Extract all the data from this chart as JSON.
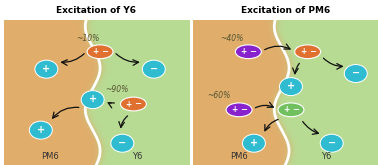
{
  "title_left": "Excitation of Y6",
  "title_right": "Excitation of PM6",
  "label_PM6": "PM6",
  "label_Y6": "Y6",
  "orange_color": "#e07030",
  "purple_color": "#8822cc",
  "green_exciton_color": "#70c060",
  "cyan_color": "#30bcd0",
  "bg_orange": "#dba060",
  "bg_green": "#b8d890",
  "title_fontsize": 6.5,
  "label_fontsize": 6,
  "pct_fontsize": 5.5,
  "arrow_color": "#111111",
  "white": "#ffffff"
}
